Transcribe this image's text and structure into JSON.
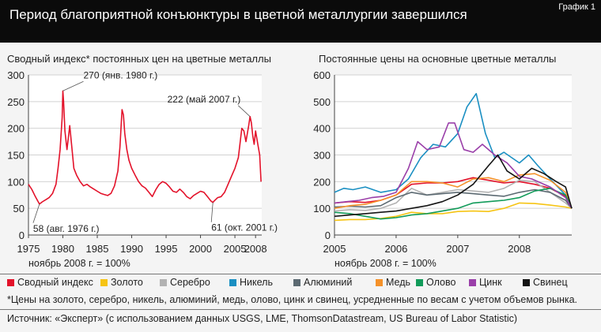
{
  "header": {
    "title": "Период благоприятной конъюнктуры в цветной металлургии завершился",
    "badge": "График 1"
  },
  "chart_data": [
    {
      "type": "line",
      "title": "Сводный индекс* постоянных цен на цветные металлы",
      "note": "ноябрь 2008 г. = 100%",
      "x_ticks": [
        "1975",
        "1980",
        "1985",
        "1990",
        "1995",
        "2000",
        "2005",
        "2008"
      ],
      "xlim": [
        1975,
        2008.9
      ],
      "ylim": [
        0,
        300
      ],
      "y_ticks": [
        0,
        50,
        100,
        150,
        200,
        250,
        300
      ],
      "color": "#e3122a",
      "series": [
        {
          "name": "Сводный индекс",
          "x": [
            1975,
            1975.5,
            1976,
            1976.6,
            1977,
            1977.5,
            1978,
            1978.5,
            1979,
            1979.3,
            1979.6,
            1979.9,
            1980.0,
            1980.1,
            1980.3,
            1980.6,
            1981,
            1981.3,
            1981.6,
            1982,
            1982.5,
            1983,
            1983.5,
            1984,
            1984.5,
            1985,
            1985.5,
            1986,
            1986.5,
            1987,
            1987.5,
            1988,
            1988.3,
            1988.6,
            1988.8,
            1989,
            1989.3,
            1989.6,
            1990,
            1990.5,
            1991,
            1991.5,
            1992,
            1992.5,
            1993,
            1993.5,
            1994,
            1994.5,
            1995,
            1995.5,
            1996,
            1996.5,
            1997,
            1997.5,
            1998,
            1998.5,
            1999,
            1999.5,
            2000,
            2000.5,
            2001,
            2001.5,
            2001.8,
            2002,
            2002.5,
            2003,
            2003.5,
            2004,
            2004.5,
            2005,
            2005.5,
            2006,
            2006.3,
            2006.6,
            2007,
            2007.2,
            2007.4,
            2007.6,
            2007.8,
            2008,
            2008.2,
            2008.4,
            2008.6,
            2008.8
          ],
          "values": [
            95,
            85,
            72,
            58,
            62,
            66,
            70,
            78,
            95,
            125,
            160,
            220,
            270,
            250,
            195,
            160,
            205,
            165,
            125,
            112,
            100,
            92,
            95,
            90,
            86,
            82,
            78,
            76,
            74,
            78,
            92,
            120,
            165,
            235,
            225,
            190,
            160,
            140,
            125,
            112,
            100,
            92,
            88,
            80,
            72,
            85,
            95,
            100,
            97,
            90,
            82,
            80,
            86,
            80,
            72,
            68,
            74,
            78,
            82,
            80,
            72,
            64,
            61,
            64,
            70,
            72,
            80,
            95,
            110,
            125,
            145,
            200,
            195,
            175,
            205,
            222,
            210,
            185,
            170,
            195,
            180,
            165,
            150,
            100
          ]
        }
      ],
      "annotations": [
        {
          "text": "270 (янв. 1980 г.)",
          "x": 1980.0,
          "y": 270
        },
        {
          "text": "58 (авг. 1976 г.)",
          "x": 1976.6,
          "y": 58
        },
        {
          "text": "222 (май 2007 г.)",
          "x": 2007.2,
          "y": 222
        },
        {
          "text": "61 (окт. 2001 г.)",
          "x": 2001.8,
          "y": 61
        }
      ]
    },
    {
      "type": "line",
      "title": "Постоянные цены на основные цветные металлы",
      "note": "ноябрь 2008 г. = 100%",
      "x_ticks": [
        "2005",
        "2006",
        "2007",
        "2008"
      ],
      "xlim": [
        2005,
        2008.85
      ],
      "ylim": [
        0,
        600
      ],
      "y_ticks": [
        0,
        100,
        200,
        300,
        400,
        500,
        600
      ],
      "series": [
        {
          "name": "Сводный индекс",
          "color": "#e3122a",
          "x": [
            2005,
            2005.25,
            2005.5,
            2005.75,
            2006,
            2006.25,
            2006.5,
            2006.75,
            2007,
            2007.25,
            2007.5,
            2007.75,
            2008,
            2008.25,
            2008.5,
            2008.75,
            2008.85
          ],
          "values": [
            120,
            125,
            122,
            130,
            150,
            190,
            195,
            195,
            200,
            215,
            205,
            195,
            200,
            190,
            175,
            145,
            100
          ]
        },
        {
          "name": "Золото",
          "color": "#f6c414",
          "x": [
            2005,
            2005.25,
            2005.5,
            2005.75,
            2006,
            2006.25,
            2006.5,
            2006.75,
            2007,
            2007.25,
            2007.5,
            2007.75,
            2008,
            2008.25,
            2008.5,
            2008.75,
            2008.85
          ],
          "values": [
            55,
            58,
            58,
            62,
            70,
            85,
            80,
            80,
            88,
            90,
            88,
            100,
            120,
            118,
            112,
            105,
            100
          ]
        },
        {
          "name": "Серебро",
          "color": "#b2b2b2",
          "x": [
            2005,
            2005.25,
            2005.5,
            2005.75,
            2006,
            2006.25,
            2006.5,
            2006.75,
            2007,
            2007.25,
            2007.5,
            2007.75,
            2008,
            2008.25,
            2008.5,
            2008.75,
            2008.85
          ],
          "values": [
            90,
            95,
            92,
            100,
            120,
            175,
            150,
            160,
            170,
            165,
            160,
            175,
            205,
            200,
            160,
            120,
            100
          ]
        },
        {
          "name": "Никель",
          "color": "#1a8fc2",
          "x": [
            2005,
            2005.15,
            2005.3,
            2005.5,
            2005.75,
            2006,
            2006.2,
            2006.4,
            2006.6,
            2006.8,
            2007,
            2007.15,
            2007.3,
            2007.45,
            2007.6,
            2007.75,
            2008,
            2008.15,
            2008.3,
            2008.5,
            2008.75,
            2008.85
          ],
          "values": [
            160,
            175,
            170,
            180,
            160,
            170,
            210,
            290,
            340,
            330,
            380,
            480,
            530,
            380,
            290,
            310,
            270,
            300,
            260,
            210,
            150,
            100
          ]
        },
        {
          "name": "Алюминий",
          "color": "#5c6a72",
          "x": [
            2005,
            2005.25,
            2005.5,
            2005.75,
            2006,
            2006.25,
            2006.5,
            2006.75,
            2007,
            2007.25,
            2007.5,
            2007.75,
            2008,
            2008.25,
            2008.5,
            2008.75,
            2008.85
          ],
          "values": [
            105,
            108,
            105,
            110,
            140,
            160,
            150,
            155,
            160,
            155,
            150,
            145,
            160,
            170,
            160,
            130,
            100
          ]
        },
        {
          "name": "Медь",
          "color": "#f5922a",
          "x": [
            2005,
            2005.25,
            2005.5,
            2005.75,
            2006,
            2006.25,
            2006.5,
            2006.75,
            2007,
            2007.25,
            2007.5,
            2007.75,
            2008,
            2008.25,
            2008.5,
            2008.75,
            2008.85
          ],
          "values": [
            100,
            110,
            115,
            130,
            150,
            200,
            200,
            195,
            180,
            210,
            215,
            200,
            225,
            230,
            205,
            160,
            100
          ]
        },
        {
          "name": "Олово",
          "color": "#129b5a",
          "x": [
            2005,
            2005.25,
            2005.5,
            2005.75,
            2006,
            2006.25,
            2006.5,
            2006.75,
            2007,
            2007.25,
            2007.5,
            2007.75,
            2008,
            2008.25,
            2008.5,
            2008.75,
            2008.85
          ],
          "values": [
            85,
            80,
            70,
            60,
            65,
            75,
            80,
            90,
            100,
            120,
            125,
            130,
            140,
            165,
            175,
            150,
            100
          ]
        },
        {
          "name": "Цинк",
          "color": "#9a3fa9",
          "x": [
            2005,
            2005.2,
            2005.4,
            2005.6,
            2005.8,
            2006,
            2006.2,
            2006.35,
            2006.5,
            2006.7,
            2006.85,
            2006.95,
            2007.1,
            2007.25,
            2007.4,
            2007.6,
            2007.8,
            2008,
            2008.2,
            2008.5,
            2008.75,
            2008.85
          ],
          "values": [
            120,
            125,
            130,
            140,
            145,
            160,
            250,
            350,
            320,
            330,
            420,
            420,
            320,
            310,
            340,
            300,
            270,
            220,
            210,
            180,
            140,
            100
          ]
        },
        {
          "name": "Свинец",
          "color": "#141414",
          "x": [
            2005,
            2005.25,
            2005.5,
            2005.75,
            2006,
            2006.25,
            2006.5,
            2006.75,
            2007,
            2007.25,
            2007.5,
            2007.65,
            2007.8,
            2008,
            2008.2,
            2008.4,
            2008.6,
            2008.75,
            2008.85
          ],
          "values": [
            70,
            75,
            80,
            85,
            90,
            100,
            110,
            125,
            150,
            190,
            260,
            300,
            240,
            210,
            250,
            230,
            200,
            180,
            100
          ]
        }
      ]
    }
  ],
  "legend": [
    {
      "label": "Сводный индекс",
      "color": "#e3122a"
    },
    {
      "label": "Золото",
      "color": "#f6c414"
    },
    {
      "label": "Серебро",
      "color": "#b2b2b2"
    },
    {
      "label": "Никель",
      "color": "#1a8fc2"
    },
    {
      "label": "Алюминий",
      "color": "#5c6a72"
    },
    {
      "label": "Медь",
      "color": "#f5922a"
    },
    {
      "label": "Олово",
      "color": "#129b5a"
    },
    {
      "label": "Цинк",
      "color": "#9a3fa9"
    },
    {
      "label": "Свинец",
      "color": "#141414"
    }
  ],
  "footnote": "*Цены на золото, серебро, никель, алюминий, медь, олово, цинк и свинец, усредненные по весам с учетом объемов рынка.",
  "source": "Источник: «Эксперт» (с использованием данных USGS, LME, ThomsonDatastream, US Bureau of Labor Statistic)"
}
